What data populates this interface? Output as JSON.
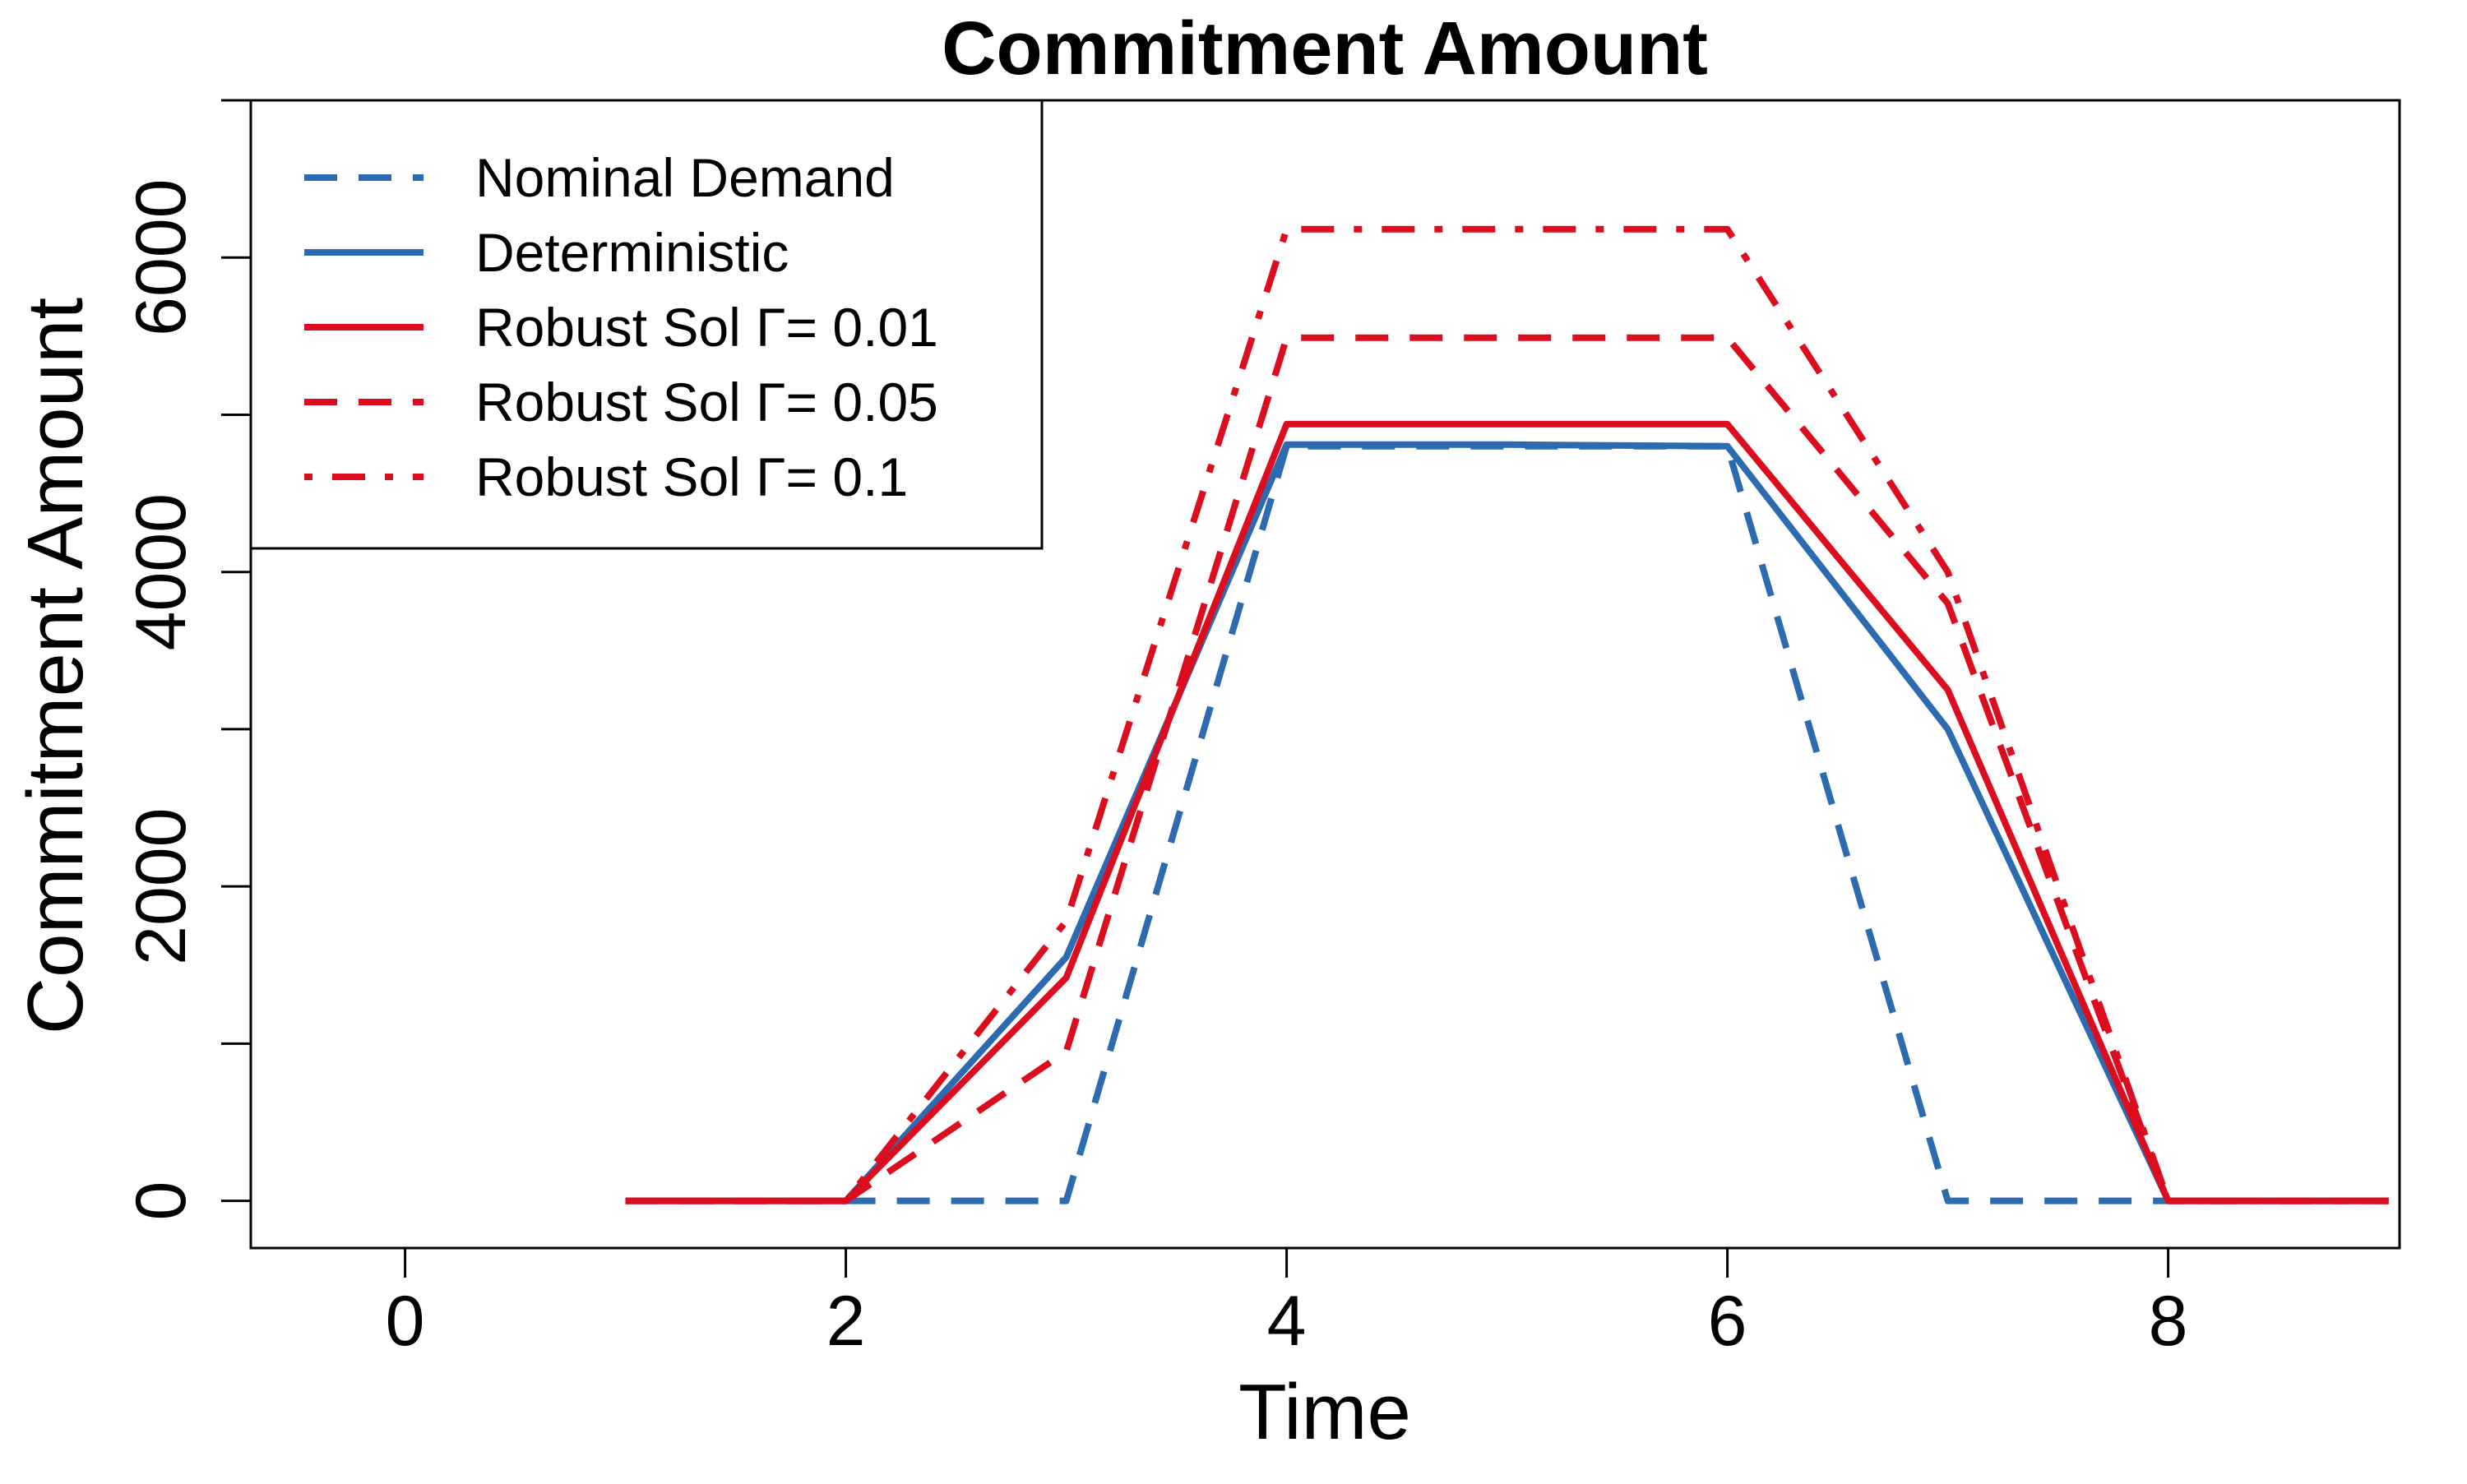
{
  "chart_data": {
    "type": "line",
    "title": "Commitment Amount",
    "xlabel": "Time",
    "ylabel": "Commitment Amount",
    "xlim": [
      -0.7,
      9.05
    ],
    "ylim": [
      -300,
      7000
    ],
    "xticks": [
      0,
      2,
      4,
      6,
      8
    ],
    "yticks": [
      0,
      2000,
      4000,
      6000
    ],
    "yminor_ticks": [
      1000,
      3000,
      5000,
      7000
    ],
    "grid": false,
    "legend_position": "top-left",
    "x": [
      1,
      2,
      3,
      4,
      5,
      6,
      7,
      8,
      9
    ],
    "series": [
      {
        "name": "Nominal Demand",
        "color": "#2c6bb0",
        "dash": "dashed",
        "values": [
          0,
          0,
          0,
          4800,
          4800,
          4800,
          0,
          0,
          0
        ]
      },
      {
        "name": "Deterministic",
        "color": "#2c6bb0",
        "dash": "solid",
        "values": [
          0,
          0,
          1550,
          4810,
          4810,
          4800,
          3000,
          0,
          0
        ]
      },
      {
        "name": "Robust Sol Γ= 0.01",
        "color": "#dc0d1e",
        "dash": "solid",
        "values": [
          0,
          0,
          1420,
          4940,
          4940,
          4940,
          3250,
          0,
          0
        ]
      },
      {
        "name": "Robust Sol Γ= 0.05",
        "color": "#dc0d1e",
        "dash": "dashed",
        "values": [
          0,
          0,
          950,
          5490,
          5490,
          5490,
          3800,
          0,
          0
        ]
      },
      {
        "name": "Robust Sol Γ= 0.1",
        "color": "#dc0d1e",
        "dash": "dotdash",
        "values": [
          0,
          0,
          1780,
          6180,
          6180,
          6180,
          4000,
          0,
          0
        ]
      }
    ]
  }
}
